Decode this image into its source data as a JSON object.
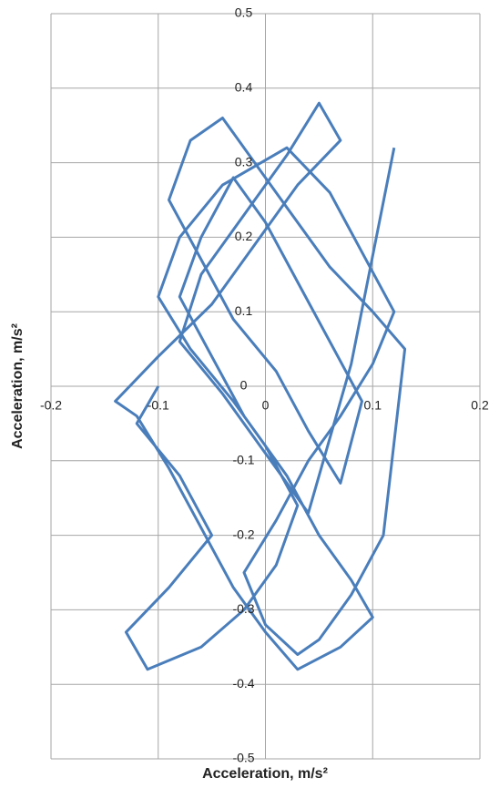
{
  "chart_data": {
    "type": "line",
    "x_label": "Acceleration, m/s²",
    "y_label": "Acceleration, m/s²",
    "xlim": [
      -0.2,
      0.2
    ],
    "xticks": [
      -0.2,
      -0.1,
      0,
      0.1,
      0.2
    ],
    "ylim": [
      -0.5,
      0.5
    ],
    "yticks": [
      -0.5,
      -0.4,
      -0.3,
      -0.2,
      -0.1,
      0,
      0.1,
      0.2,
      0.3,
      0.4,
      0.5
    ],
    "grid": true,
    "series": [
      {
        "color": "#4a7ebb",
        "x": [
          -0.1,
          -0.12,
          -0.08,
          -0.05,
          -0.09,
          -0.13,
          -0.11,
          -0.06,
          -0.02,
          0.01,
          0.03,
          0.0,
          -0.03,
          -0.07,
          -0.1,
          -0.08,
          -0.04,
          0.02,
          0.06,
          0.09,
          0.12,
          0.1,
          0.07,
          0.04,
          0.01,
          -0.02,
          0.0,
          0.03,
          0.05,
          0.08,
          0.11,
          0.13,
          0.1,
          0.06,
          0.02,
          -0.01,
          -0.04,
          -0.07,
          -0.09,
          -0.06,
          -0.03,
          0.01,
          0.04,
          0.07,
          0.09,
          0.06,
          0.03,
          0.0,
          -0.03,
          -0.06,
          -0.08,
          -0.05,
          -0.02,
          0.02,
          0.05,
          0.08,
          0.1,
          0.07,
          0.03,
          0.0,
          -0.03,
          -0.06,
          -0.09,
          -0.12,
          -0.14,
          -0.1,
          -0.05,
          -0.01,
          0.03,
          0.07,
          0.05,
          0.02,
          -0.02,
          -0.06,
          -0.08,
          -0.04,
          0.0,
          0.04,
          0.08,
          0.12
        ],
        "values": [
          0.0,
          -0.05,
          -0.12,
          -0.2,
          -0.27,
          -0.33,
          -0.38,
          -0.35,
          -0.3,
          -0.24,
          -0.16,
          -0.08,
          -0.02,
          0.05,
          0.12,
          0.2,
          0.27,
          0.32,
          0.26,
          0.18,
          0.1,
          0.03,
          -0.04,
          -0.1,
          -0.18,
          -0.25,
          -0.32,
          -0.36,
          -0.34,
          -0.28,
          -0.2,
          0.05,
          0.1,
          0.16,
          0.24,
          0.3,
          0.36,
          0.33,
          0.25,
          0.17,
          0.09,
          0.02,
          -0.06,
          -0.13,
          -0.02,
          0.06,
          0.14,
          0.22,
          0.28,
          0.2,
          0.12,
          0.04,
          -0.04,
          -0.12,
          -0.2,
          -0.26,
          -0.31,
          -0.35,
          -0.38,
          -0.33,
          -0.27,
          -0.19,
          -0.11,
          -0.04,
          -0.02,
          0.04,
          0.11,
          0.19,
          0.27,
          0.33,
          0.38,
          0.31,
          0.23,
          0.15,
          0.06,
          -0.01,
          -0.09,
          -0.17,
          0.03,
          0.32
        ]
      }
    ]
  }
}
